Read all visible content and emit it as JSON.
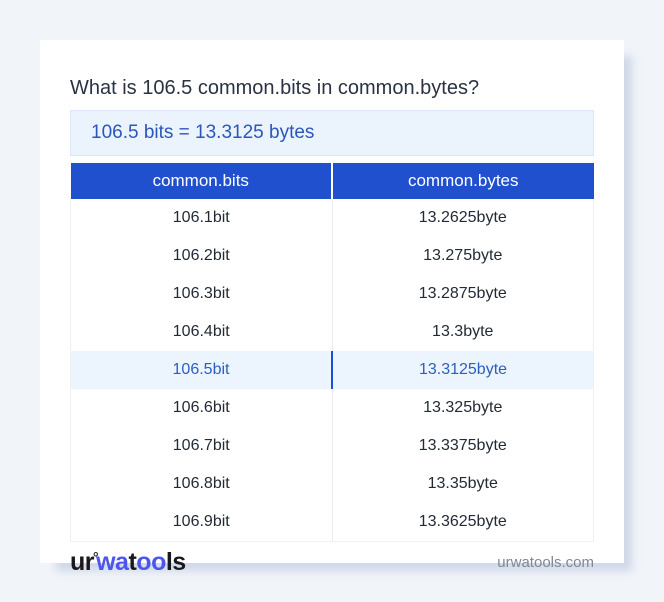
{
  "title": "What is 106.5 common.bits in common.bytes?",
  "result": "106.5 bits = 13.3125 bytes",
  "table": {
    "columns": [
      "common.bits",
      "common.bytes"
    ],
    "highlight_index": 4,
    "rows": [
      {
        "bits": "106.1bit",
        "bytes": "13.2625byte"
      },
      {
        "bits": "106.2bit",
        "bytes": "13.275byte"
      },
      {
        "bits": "106.3bit",
        "bytes": "13.2875byte"
      },
      {
        "bits": "106.4bit",
        "bytes": "13.3byte"
      },
      {
        "bits": "106.5bit",
        "bytes": "13.3125byte"
      },
      {
        "bits": "106.6bit",
        "bytes": "13.325byte"
      },
      {
        "bits": "106.7bit",
        "bytes": "13.3375byte"
      },
      {
        "bits": "106.8bit",
        "bytes": "13.35byte"
      },
      {
        "bits": "106.9bit",
        "bytes": "13.3625byte"
      }
    ]
  },
  "footer": {
    "logo_parts": {
      "p1": "ur",
      "ring": "°",
      "p2": "wa",
      "p3": "t",
      "p4": "oo",
      "p5": "ls"
    },
    "domain": "urwatools.com"
  },
  "colors": {
    "page_bg": "#f1f4f9",
    "card_bg": "#ffffff",
    "header_bg": "#2150cf",
    "header_text": "#ffffff",
    "result_bg": "#ebf3fd",
    "result_text": "#2a57ba",
    "row_text": "#222b35",
    "highlight_bg": "#ecf4fe",
    "highlight_text": "#2a5fc0",
    "highlight_divider": "#1d4ed8",
    "logo_dark": "#19191d",
    "logo_accent": "#4c55ee",
    "domain_text": "#7e8897"
  }
}
